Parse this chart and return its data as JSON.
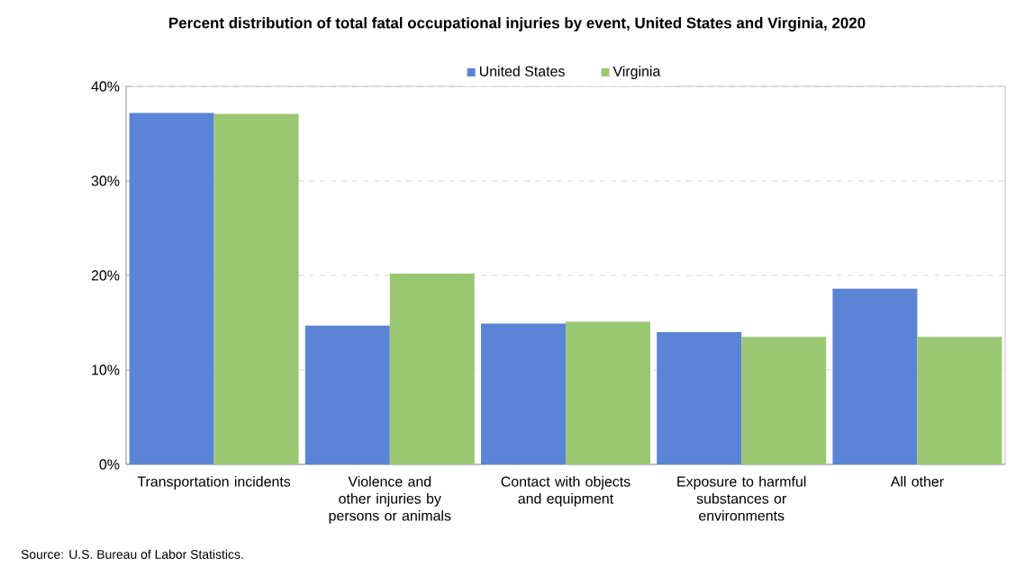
{
  "chart_data": {
    "type": "bar",
    "title": "Percent distribution of total fatal occupational injuries by event, United States and Virginia, 2020",
    "categories": [
      "Transportation incidents",
      "Violence and other injuries by persons or animals",
      "Contact with objects and equipment",
      "Exposure to harmful substances or environments",
      "All other"
    ],
    "series": [
      {
        "name": "United States",
        "color": "#5b84d6",
        "values": [
          37.2,
          14.7,
          14.9,
          14.0,
          18.6
        ]
      },
      {
        "name": "Virginia",
        "color": "#9ac872",
        "values": [
          37.1,
          20.2,
          15.1,
          13.5,
          13.5
        ]
      }
    ],
    "ylim": [
      0,
      40
    ],
    "yticks": [
      {
        "value": 0,
        "label": "0%"
      },
      {
        "value": 10,
        "label": "10%"
      },
      {
        "value": 20,
        "label": "20%"
      },
      {
        "value": 30,
        "label": "30%"
      },
      {
        "value": 40,
        "label": "40%"
      }
    ],
    "grid": "y",
    "legend": "top",
    "annotations": [
      "Source: U.S. Bureau of Labor Statistics."
    ]
  }
}
